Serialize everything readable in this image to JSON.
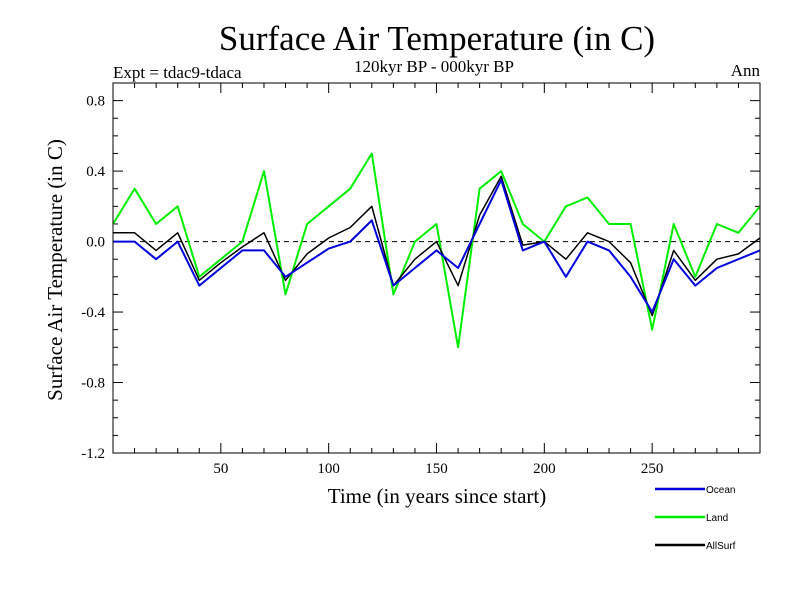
{
  "chart_data": {
    "type": "line",
    "title": "Surface Air Temperature (in C)",
    "subtitle": "120kyr BP - 000kyr BP",
    "expt_label": "Expt = tdac9-tdaca",
    "period_label": "Ann",
    "xlabel": "Time (in years since start)",
    "ylabel": "Surface Air Temperature (in C)",
    "xlim": [
      0,
      300
    ],
    "ylim": [
      -1.2,
      0.9
    ],
    "x_ticks": [
      50,
      100,
      150,
      200,
      250
    ],
    "x_tick_labels": [
      "50",
      "100",
      "150",
      "200",
      "250"
    ],
    "y_ticks": [
      -1.2,
      -0.8,
      -0.4,
      0.0,
      0.4,
      0.8
    ],
    "y_tick_labels": [
      "-1.2",
      "-0.8",
      "-0.4",
      "0.0",
      "0.4",
      "0.8"
    ],
    "zero_line": true,
    "legend_position": "bottom-right",
    "series": [
      {
        "name": "Ocean",
        "color": "#0000dd",
        "x": [
          0,
          10,
          20,
          30,
          40,
          50,
          60,
          70,
          80,
          90,
          100,
          110,
          120,
          130,
          140,
          150,
          160,
          170,
          180,
          190,
          200,
          210,
          220,
          230,
          240,
          250,
          260,
          270,
          280,
          290,
          300
        ],
        "values": [
          0.0,
          0.0,
          -0.1,
          0.0,
          -0.25,
          -0.15,
          -0.05,
          -0.05,
          -0.2,
          -0.12,
          -0.04,
          0.0,
          0.12,
          -0.25,
          -0.15,
          -0.05,
          -0.15,
          0.1,
          0.35,
          -0.05,
          0.0,
          -0.2,
          0.0,
          -0.05,
          -0.2,
          -0.4,
          -0.1,
          -0.25,
          -0.15,
          -0.1,
          -0.05
        ]
      },
      {
        "name": "Land",
        "color": "#00ee00",
        "x": [
          0,
          10,
          20,
          30,
          40,
          50,
          60,
          70,
          80,
          90,
          100,
          110,
          120,
          130,
          140,
          150,
          160,
          170,
          180,
          190,
          200,
          210,
          220,
          230,
          240,
          250,
          260,
          270,
          280,
          290,
          300
        ],
        "values": [
          0.1,
          0.3,
          0.1,
          0.2,
          -0.2,
          -0.1,
          0.0,
          0.4,
          -0.3,
          0.1,
          0.2,
          0.3,
          0.5,
          -0.3,
          0.0,
          0.1,
          -0.6,
          0.3,
          0.4,
          0.1,
          0.0,
          0.2,
          0.25,
          0.1,
          0.1,
          -0.5,
          0.1,
          -0.2,
          0.1,
          0.05,
          0.2
        ]
      },
      {
        "name": "AllSurf",
        "color": "#000000",
        "x": [
          0,
          10,
          20,
          30,
          40,
          50,
          60,
          70,
          80,
          90,
          100,
          110,
          120,
          130,
          140,
          150,
          160,
          170,
          180,
          190,
          200,
          210,
          220,
          230,
          240,
          250,
          260,
          270,
          280,
          290,
          300
        ],
        "values": [
          0.05,
          0.05,
          -0.05,
          0.05,
          -0.22,
          -0.12,
          -0.03,
          0.05,
          -0.22,
          -0.07,
          0.02,
          0.08,
          0.2,
          -0.25,
          -0.1,
          0.0,
          -0.25,
          0.15,
          0.37,
          -0.02,
          0.0,
          -0.1,
          0.05,
          0.0,
          -0.12,
          -0.42,
          -0.05,
          -0.22,
          -0.1,
          -0.07,
          0.02
        ]
      }
    ]
  }
}
